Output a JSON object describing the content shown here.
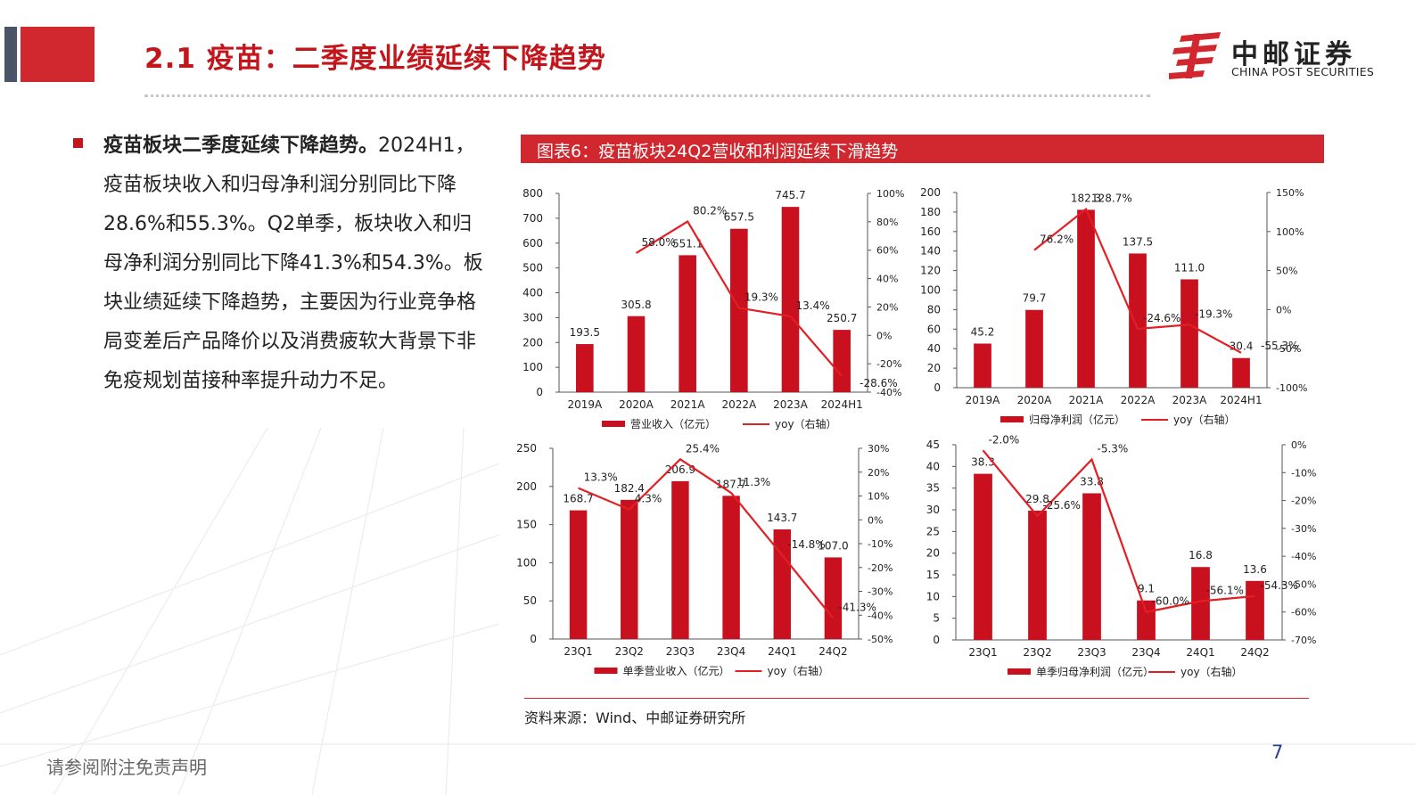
{
  "header": {
    "title": "2.1 疫苗：二季度业绩延续下降趋势",
    "logo_cn": "中邮证券",
    "logo_en": "CHINA POST SECURITIES"
  },
  "body": {
    "bold_lead": "疫苗板块二季度延续下降趋势。",
    "text": "2024H1，疫苗板块收入和归母净利润分别同比下降28.6%和55.3%。Q2单季，板块收入和归母净利润分别同比下降41.3%和54.3%。板块业绩延续下降趋势，主要因为行业竞争格局变差后产品降价以及消费疲软大背景下非免疫规划苗接种率提升动力不足。"
  },
  "figure": {
    "title": "图表6：疫苗板块24Q2营收和利润延续下滑趋势",
    "source": "资料来源：Wind、中邮证券研究所"
  },
  "footer": {
    "disclaimer": "请参阅附注免责声明",
    "page_number": "7"
  },
  "colors": {
    "accent": "#d0282e",
    "bar": "#c8101e",
    "line": "#e31e24"
  },
  "chart_data": [
    {
      "id": "c1",
      "type": "bar",
      "categories": [
        "2019A",
        "2020A",
        "2021A",
        "2022A",
        "2023A",
        "2024H1"
      ],
      "bar_values": [
        193.5,
        305.8,
        551.1,
        657.5,
        745.7,
        250.7
      ],
      "bar_labels": [
        "193.5",
        "305.8",
        "551.1",
        "657.5",
        "745.7",
        "250.7"
      ],
      "line_values": [
        null,
        58.0,
        80.2,
        19.3,
        13.4,
        -28.6
      ],
      "line_labels": [
        "",
        "58.0%",
        "80.2%",
        "19.3%",
        "13.4%",
        "-28.6%"
      ],
      "ylim": [
        0,
        800
      ],
      "yticks": [
        "0",
        "100",
        "200",
        "300",
        "400",
        "500",
        "600",
        "700",
        "800"
      ],
      "y2lim": [
        -40,
        100
      ],
      "y2ticks": [
        "-40%",
        "-20%",
        "0%",
        "20%",
        "40%",
        "60%",
        "80%",
        "100%"
      ],
      "legend": [
        "营业收入（亿元）",
        "yoy（右轴）"
      ]
    },
    {
      "id": "c2",
      "type": "bar",
      "categories": [
        "2019A",
        "2020A",
        "2021A",
        "2022A",
        "2023A",
        "2024H1"
      ],
      "bar_values": [
        45.2,
        79.7,
        182.3,
        137.5,
        111.0,
        30.4
      ],
      "bar_labels": [
        "45.2",
        "79.7",
        "182.3",
        "137.5",
        "111.0",
        "30.4"
      ],
      "line_values": [
        null,
        76.2,
        128.7,
        -24.6,
        -19.3,
        -55.3
      ],
      "line_labels": [
        "",
        "76.2%",
        "128.7%",
        "-24.6%",
        "-19.3%",
        "-55.3%"
      ],
      "ylim": [
        0,
        200
      ],
      "yticks": [
        "0",
        "20",
        "40",
        "60",
        "80",
        "100",
        "120",
        "140",
        "160",
        "180",
        "200"
      ],
      "y2lim": [
        -100,
        150
      ],
      "y2ticks": [
        "-100%",
        "-50%",
        "0%",
        "50%",
        "100%",
        "150%"
      ],
      "legend": [
        "归母净利润（亿元）",
        "yoy（右轴）"
      ]
    },
    {
      "id": "c3",
      "type": "bar",
      "categories": [
        "23Q1",
        "23Q2",
        "23Q3",
        "23Q4",
        "24Q1",
        "24Q2"
      ],
      "bar_values": [
        168.7,
        182.4,
        206.9,
        187.7,
        143.7,
        107.0
      ],
      "bar_labels": [
        "168.7",
        "182.4",
        "206.9",
        "187.7",
        "143.7",
        "107.0"
      ],
      "line_values": [
        13.3,
        4.3,
        25.4,
        11.3,
        -14.8,
        -41.3
      ],
      "line_labels": [
        "13.3%",
        "4.3%",
        "25.4%",
        "11.3%",
        "-14.8%",
        "-41.3%"
      ],
      "ylim": [
        0,
        250
      ],
      "yticks": [
        "0",
        "50",
        "100",
        "150",
        "200",
        "250"
      ],
      "y2lim": [
        -50,
        30
      ],
      "y2ticks": [
        "-50%",
        "-40%",
        "-30%",
        "-20%",
        "-10%",
        "0%",
        "10%",
        "20%",
        "30%"
      ],
      "legend": [
        "单季营业收入（亿元）",
        "yoy（右轴）"
      ]
    },
    {
      "id": "c4",
      "type": "bar",
      "categories": [
        "23Q1",
        "23Q2",
        "23Q3",
        "23Q4",
        "24Q1",
        "24Q2"
      ],
      "bar_values": [
        38.3,
        29.8,
        33.8,
        9.1,
        16.8,
        13.6
      ],
      "bar_labels": [
        "38.3",
        "29.8",
        "33.8",
        "9.1",
        "16.8",
        "13.6"
      ],
      "line_values": [
        -2.0,
        -25.6,
        -5.3,
        -60.0,
        -56.1,
        -54.3
      ],
      "line_labels": [
        "-2.0%",
        "-25.6%",
        "-5.3%",
        "-60.0%",
        "-56.1%",
        "-54.3%"
      ],
      "ylim": [
        0,
        45
      ],
      "yticks": [
        "0",
        "5",
        "10",
        "15",
        "20",
        "25",
        "30",
        "35",
        "40",
        "45"
      ],
      "y2lim": [
        -70,
        0
      ],
      "y2ticks": [
        "-70%",
        "-60%",
        "-50%",
        "-40%",
        "-30%",
        "-20%",
        "-10%",
        "0%"
      ],
      "legend": [
        "单季归母净利润（亿元）",
        "yoy（右轴）"
      ]
    }
  ]
}
